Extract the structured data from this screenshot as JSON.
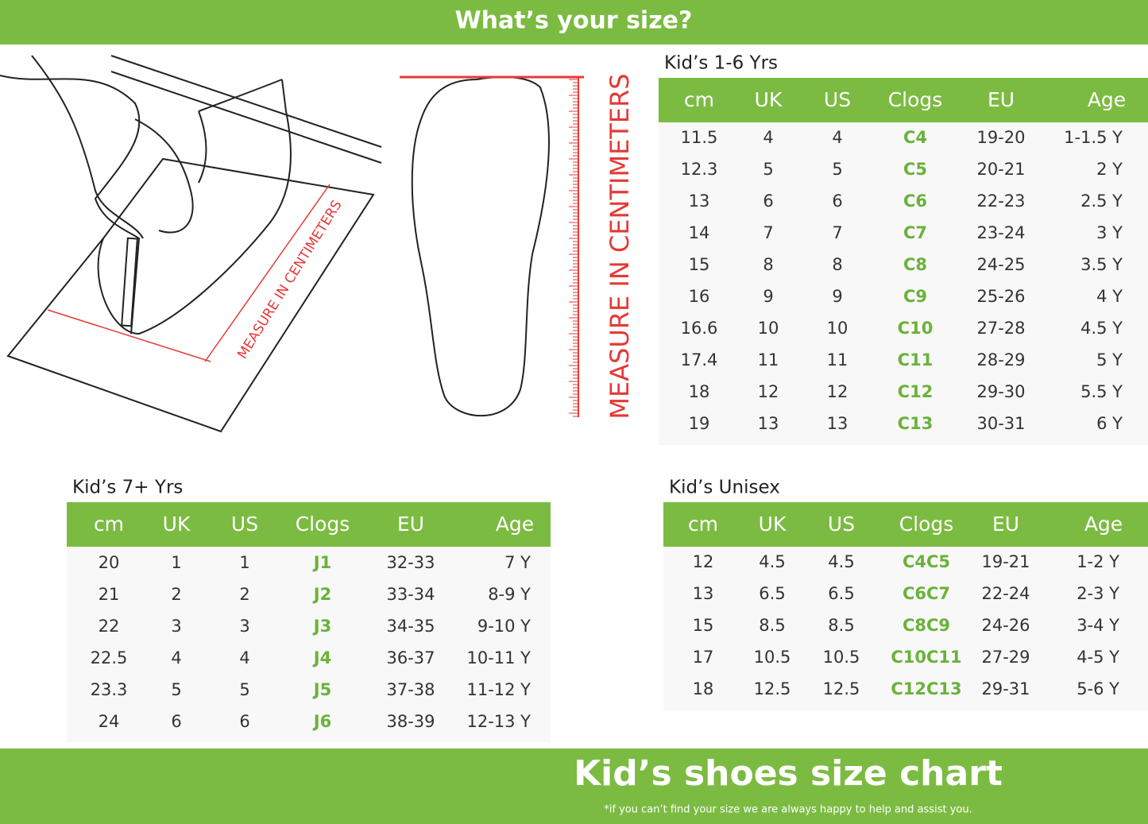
{
  "header": {
    "title": "What’s your size?"
  },
  "illustration": {
    "left_label": "MEASURE IN CENTIMETERS",
    "right_label": "MEASURE IN CENTIMETERS"
  },
  "tables": [
    {
      "title": "Kid’s 1-6 Yrs",
      "columns": [
        "cm",
        "UK",
        "US",
        "Clogs",
        "EU",
        "Age"
      ],
      "rows": [
        [
          "11.5",
          "4",
          "4",
          "C4",
          "19-20",
          "1-1.5 Y"
        ],
        [
          "12.3",
          "5",
          "5",
          "C5",
          "20-21",
          "2 Y"
        ],
        [
          "13",
          "6",
          "6",
          "C6",
          "22-23",
          "2.5 Y"
        ],
        [
          "14",
          "7",
          "7",
          "C7",
          "23-24",
          "3 Y"
        ],
        [
          "15",
          "8",
          "8",
          "C8",
          "24-25",
          "3.5 Y"
        ],
        [
          "16",
          "9",
          "9",
          "C9",
          "25-26",
          "4 Y"
        ],
        [
          "16.6",
          "10",
          "10",
          "C10",
          "27-28",
          "4.5 Y"
        ],
        [
          "17.4",
          "11",
          "11",
          "C11",
          "28-29",
          "5 Y"
        ],
        [
          "18",
          "12",
          "12",
          "C12",
          "29-30",
          "5.5 Y"
        ],
        [
          "19",
          "13",
          "13",
          "C13",
          "30-31",
          "6 Y"
        ]
      ]
    },
    {
      "title": "Kid’s 7+ Yrs",
      "columns": [
        "cm",
        "UK",
        "US",
        "Clogs",
        "EU",
        "Age"
      ],
      "rows": [
        [
          "20",
          "1",
          "1",
          "J1",
          "32-33",
          "7 Y"
        ],
        [
          "21",
          "2",
          "2",
          "J2",
          "33-34",
          "8-9 Y"
        ],
        [
          "22",
          "3",
          "3",
          "J3",
          "34-35",
          "9-10 Y"
        ],
        [
          "22.5",
          "4",
          "4",
          "J4",
          "36-37",
          "10-11 Y"
        ],
        [
          "23.3",
          "5",
          "5",
          "J5",
          "37-38",
          "11-12 Y"
        ],
        [
          "24",
          "6",
          "6",
          "J6",
          "38-39",
          "12-13 Y"
        ]
      ]
    },
    {
      "title": "Kid’s Unisex",
      "columns": [
        "cm",
        "UK",
        "US",
        "Clogs",
        "EU",
        "Age"
      ],
      "rows": [
        [
          "12",
          "4.5",
          "4.5",
          "C4C5",
          "19-21",
          "1-2 Y"
        ],
        [
          "13",
          "6.5",
          "6.5",
          "C6C7",
          "22-24",
          "2-3 Y"
        ],
        [
          "15",
          "8.5",
          "8.5",
          "C8C9",
          "24-26",
          "3-4 Y"
        ],
        [
          "17",
          "10.5",
          "10.5",
          "C10C11",
          "27-29",
          "4-5 Y"
        ],
        [
          "18",
          "12.5",
          "12.5",
          "C12C13",
          "29-31",
          "5-6 Y"
        ]
      ]
    }
  ],
  "footer": {
    "title": "Kid’s shoes size chart",
    "note": "*if you can’t find your size we are always happy to help and assist you."
  }
}
